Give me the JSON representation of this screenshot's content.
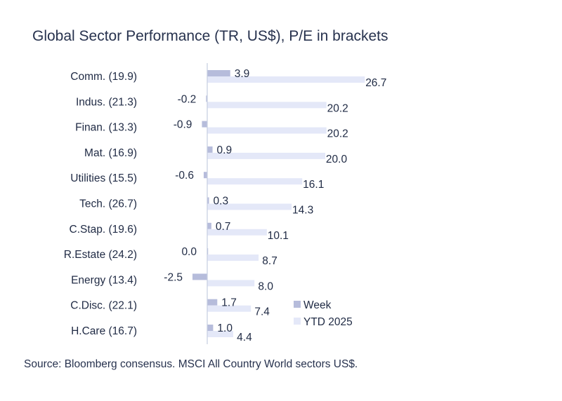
{
  "title": "Global Sector Performance (TR, US$), P/E in brackets",
  "source": "Source: Bloomberg consensus. MSCI All Country World sectors US$.",
  "colors": {
    "week": "#b6bcdb",
    "ytd": "#e4e8f8",
    "axis": "#c5cde0"
  },
  "chart_data": {
    "type": "bar",
    "orientation": "horizontal",
    "title": "Global Sector Performance (TR, US$), P/E in brackets",
    "categories": [
      "Comm. (19.9)",
      "Indus. (21.3)",
      "Finan. (13.3)",
      "Mat. (16.9)",
      "Utilities (15.5)",
      "Tech. (26.7)",
      "C.Stap. (19.6)",
      "R.Estate (24.2)",
      "Energy (13.4)",
      "C.Disc. (22.1)",
      "H.Care (16.7)"
    ],
    "series": [
      {
        "name": "Week",
        "values": [
          3.9,
          -0.2,
          -0.9,
          0.9,
          -0.6,
          0.3,
          0.7,
          0.0,
          -2.5,
          1.7,
          1.0
        ],
        "labels": [
          "3.9",
          "-0.2",
          "-0.9",
          "0.9",
          "-0.6",
          "0.3",
          "0.7",
          "0.0",
          "-2.5",
          "1.7",
          "1.0"
        ]
      },
      {
        "name": "YTD 2025",
        "values": [
          26.7,
          20.2,
          20.2,
          20.0,
          16.1,
          14.3,
          10.1,
          8.7,
          8.0,
          7.4,
          4.4
        ],
        "labels": [
          "26.7",
          "20.2",
          "20.2",
          "20.0",
          "16.1",
          "14.3",
          "10.1",
          "8.7",
          "8.0",
          "7.4",
          "4.4"
        ]
      }
    ],
    "legend": [
      "Week",
      "YTD 2025"
    ],
    "legend_position": "bottom-right",
    "grid": false
  }
}
